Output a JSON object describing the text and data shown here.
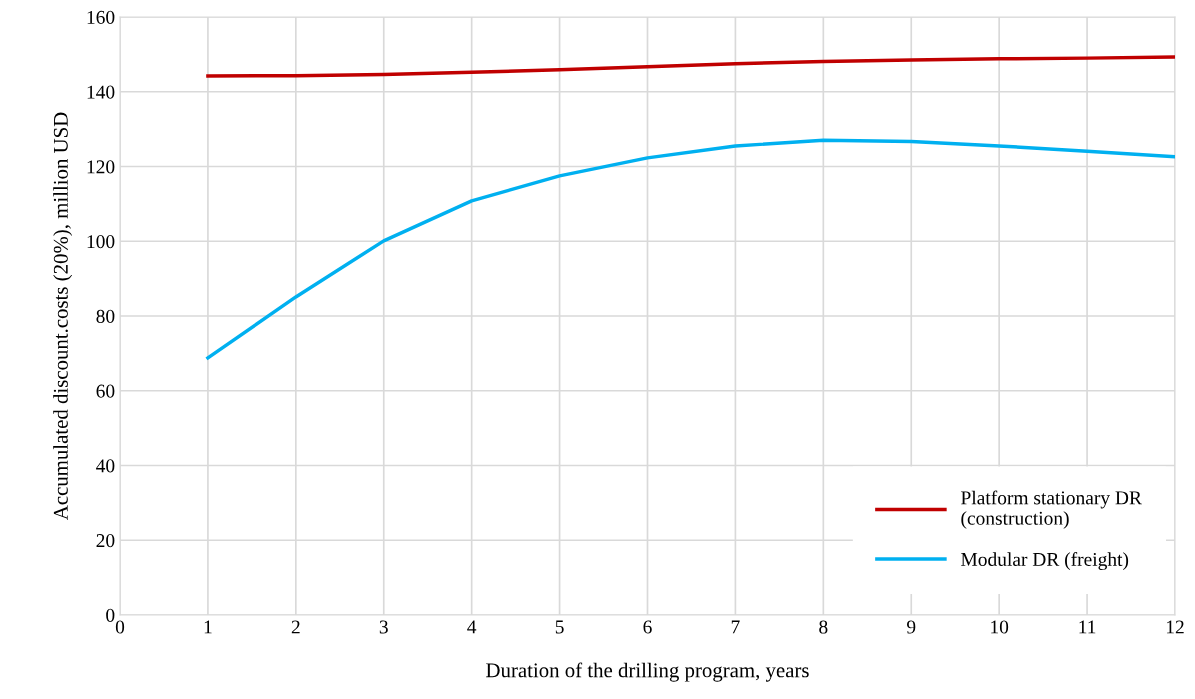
{
  "chart_data": {
    "type": "line",
    "xlabel": "Duration of the drilling program, years",
    "ylabel": "Accumulated discount.costs (20%), million USD",
    "x": [
      1,
      2,
      3,
      4,
      5,
      6,
      7,
      8,
      9,
      10,
      11,
      12
    ],
    "series": [
      {
        "name": "Platform stationary DR\n(construction)",
        "color": "#c00000",
        "values": [
          144.2,
          144.3,
          144.6,
          145.2,
          145.9,
          146.7,
          147.5,
          148.1,
          148.5,
          148.8,
          149.0,
          149.3
        ]
      },
      {
        "name": "Modular DR (freight)",
        "color": "#00b0f0",
        "values": [
          68.8,
          85.1,
          100.1,
          110.8,
          117.5,
          122.3,
          125.5,
          127.0,
          126.7,
          125.5,
          124.1,
          122.6
        ]
      }
    ],
    "xlim": [
      0,
      12
    ],
    "xticks": [
      0,
      1,
      2,
      3,
      4,
      5,
      6,
      7,
      8,
      9,
      10,
      11,
      12
    ],
    "ylim": [
      0,
      160
    ],
    "yticks": [
      0,
      20,
      40,
      60,
      80,
      100,
      120,
      140,
      160
    ],
    "grid": true,
    "legend": "bottom right",
    "marker": "none",
    "line_style": "solid"
  }
}
